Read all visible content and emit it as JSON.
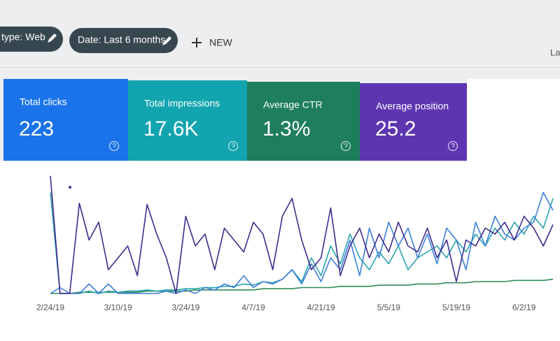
{
  "toolbar": {
    "filters": [
      "type: Web",
      "Date: Last 6 months"
    ],
    "new_button": "NEW",
    "cut_label": "La"
  },
  "metrics": [
    {
      "label": "Total clicks",
      "value": "223",
      "color": "#1a73e8"
    },
    {
      "label": "Total impressions",
      "value": "17.6K",
      "color": "#12a4af"
    },
    {
      "label": "Average CTR",
      "value": "1.3%",
      "color": "#1e7e5d"
    },
    {
      "label": "Average position",
      "value": "25.2",
      "color": "#5e35b1"
    }
  ],
  "chart_data": {
    "type": "line",
    "xlim": [
      0,
      52
    ],
    "ylim": [
      0,
      100
    ],
    "xticks": [
      {
        "value": 0,
        "label": "2/24/19"
      },
      {
        "value": 7,
        "label": "3/10/19"
      },
      {
        "value": 14,
        "label": "3/24/19"
      },
      {
        "value": 21,
        "label": "4/7/19"
      },
      {
        "value": 28,
        "label": "4/21/19"
      },
      {
        "value": 35,
        "label": "5/5/19"
      },
      {
        "value": 42,
        "label": "5/19/19"
      },
      {
        "value": 49,
        "label": "6/2/19"
      }
    ],
    "series": [
      {
        "color": "#3f2a8c",
        "values": [
          99,
          0,
          0,
          76,
          45,
          60,
          20,
          30,
          40,
          15,
          75,
          50,
          30,
          0,
          65,
          40,
          50,
          20,
          55,
          45,
          35,
          60,
          50,
          20,
          65,
          80,
          45,
          20,
          30,
          72,
          15,
          40,
          55,
          30,
          50,
          35,
          60,
          40,
          35,
          55,
          30,
          45,
          10,
          45,
          40,
          55,
          50,
          60,
          45,
          65,
          55,
          40,
          58
        ]
      },
      {
        "color": "#3b7fd9",
        "values": [
          0,
          5,
          0,
          0,
          8,
          0,
          8,
          0,
          0,
          0,
          0,
          0,
          2,
          0,
          3,
          0,
          5,
          3,
          8,
          5,
          15,
          5,
          10,
          8,
          12,
          20,
          8,
          25,
          10,
          30,
          20,
          45,
          15,
          55,
          30,
          60,
          40,
          55,
          30,
          50,
          25,
          55,
          45,
          20,
          60,
          40,
          65,
          50,
          45,
          55,
          60,
          85,
          70
        ]
      },
      {
        "color": "#2aa3ad",
        "values": [
          85,
          0,
          0,
          0,
          2,
          0,
          2,
          1,
          2,
          2,
          3,
          2,
          3,
          3,
          4,
          4,
          5,
          5,
          6,
          6,
          8,
          7,
          10,
          9,
          12,
          20,
          10,
          30,
          15,
          40,
          25,
          50,
          30,
          20,
          35,
          25,
          40,
          20,
          30,
          35,
          40,
          30,
          45,
          35,
          50,
          40,
          55,
          45,
          60,
          50,
          65,
          55,
          80
        ]
      },
      {
        "color": "#2e8b57",
        "values": [
          0,
          0,
          0,
          1,
          1,
          1,
          1,
          1,
          1,
          1,
          2,
          2,
          2,
          2,
          2,
          3,
          3,
          3,
          3,
          3,
          3,
          3,
          4,
          4,
          4,
          4,
          5,
          5,
          5,
          5,
          6,
          6,
          6,
          6,
          7,
          7,
          7,
          7,
          8,
          8,
          8,
          9,
          9,
          9,
          10,
          10,
          10,
          10,
          11,
          11,
          11,
          11,
          12
        ]
      }
    ]
  }
}
